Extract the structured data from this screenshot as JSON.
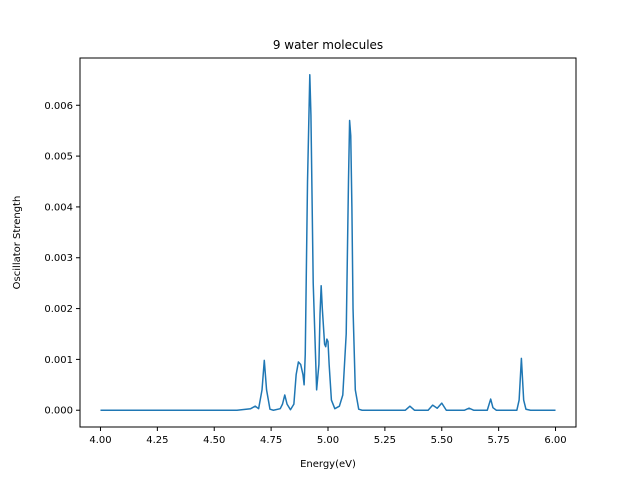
{
  "chart_data": {
    "type": "line",
    "title": "9 water molecules",
    "xlabel": "Energy(eV)",
    "ylabel": "Oscillator Strength",
    "xlim": [
      3.91,
      6.09
    ],
    "ylim": [
      -0.00033,
      0.00693
    ],
    "xticks": [
      4.0,
      4.25,
      4.5,
      4.75,
      5.0,
      5.25,
      5.5,
      5.75,
      6.0
    ],
    "xtick_labels": [
      "4.00",
      "4.25",
      "4.50",
      "4.75",
      "5.00",
      "5.25",
      "5.50",
      "5.75",
      "6.00"
    ],
    "yticks": [
      0.0,
      0.001,
      0.002,
      0.003,
      0.004,
      0.005,
      0.006
    ],
    "ytick_labels": [
      "0.000",
      "0.001",
      "0.002",
      "0.003",
      "0.004",
      "0.005",
      "0.006"
    ],
    "grid": false,
    "series": [
      {
        "color": "#1f77b4",
        "x": [
          4.0,
          4.6,
          4.66,
          4.68,
          4.695,
          4.71,
          4.72,
          4.73,
          4.745,
          4.76,
          4.79,
          4.8,
          4.81,
          4.82,
          4.835,
          4.85,
          4.86,
          4.87,
          4.88,
          4.89,
          4.895,
          4.9,
          4.91,
          4.92,
          4.925,
          4.935,
          4.95,
          4.96,
          4.965,
          4.97,
          4.975,
          4.985,
          4.99,
          4.995,
          5.0,
          5.005,
          5.015,
          5.03,
          5.05,
          5.065,
          5.08,
          5.09,
          5.095,
          5.1,
          5.105,
          5.11,
          5.12,
          5.135,
          5.15,
          5.34,
          5.36,
          5.38,
          5.44,
          5.46,
          5.48,
          5.5,
          5.52,
          5.6,
          5.62,
          5.64,
          5.7,
          5.715,
          5.725,
          5.74,
          5.83,
          5.84,
          5.85,
          5.86,
          5.87,
          5.89,
          6.0
        ],
        "y": [
          0.0,
          0.0,
          3e-05,
          8e-05,
          3e-05,
          0.0004,
          0.00098,
          0.0004,
          2e-05,
          0.0,
          3e-05,
          0.00012,
          0.0003,
          0.00012,
          1e-05,
          0.00012,
          0.0007,
          0.00095,
          0.0009,
          0.0007,
          0.0005,
          0.0011,
          0.0045,
          0.0066,
          0.0058,
          0.0025,
          0.0004,
          0.0009,
          0.0019,
          0.00245,
          0.002,
          0.0013,
          0.00125,
          0.0014,
          0.00135,
          0.0009,
          0.0002,
          3e-05,
          8e-05,
          0.0003,
          0.0015,
          0.0045,
          0.0057,
          0.0054,
          0.004,
          0.002,
          0.0004,
          2e-05,
          0.0,
          0.0,
          8e-05,
          0.0,
          0.0,
          0.0001,
          4e-05,
          0.00014,
          0.0,
          0.0,
          4e-05,
          0.0,
          0.0,
          0.00022,
          5e-05,
          0.0,
          0.0,
          0.0002,
          0.00102,
          0.0002,
          2e-05,
          0.0,
          0.0
        ]
      }
    ]
  }
}
